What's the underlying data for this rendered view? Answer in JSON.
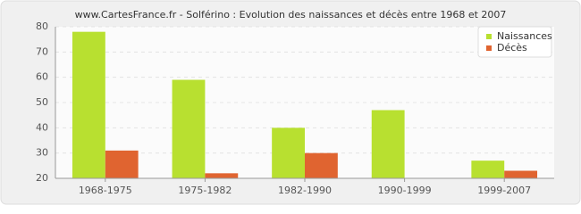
{
  "chart_data": {
    "type": "grouped-bar",
    "title": "www.CartesFrance.fr - Solférino : Evolution des naissances et décès entre 1968 et 2007",
    "categories": [
      "1968-1975",
      "1975-1982",
      "1982-1990",
      "1990-1999",
      "1999-2007"
    ],
    "series": [
      {
        "name": "Naissances",
        "color": "#b8e030",
        "values": [
          78,
          59,
          40,
          47,
          27
        ]
      },
      {
        "name": "Décès",
        "color": "#e06430",
        "values": [
          31,
          22,
          30,
          20,
          23
        ]
      }
    ],
    "ylim": [
      20,
      80
    ],
    "yticks": [
      20,
      30,
      40,
      50,
      60,
      70,
      80
    ],
    "grid": true,
    "legend": "top-right"
  }
}
